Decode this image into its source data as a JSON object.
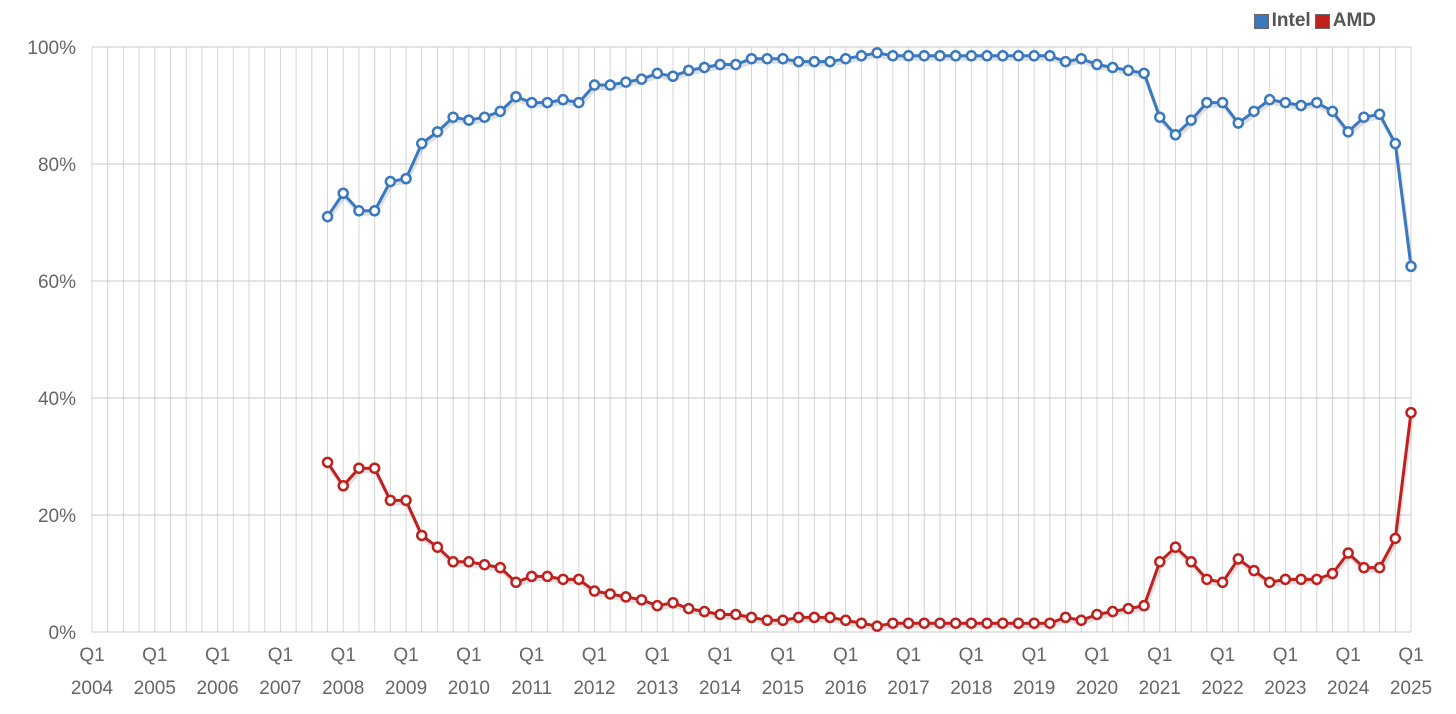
{
  "chart_data": {
    "type": "line",
    "title": "",
    "xlabel": "",
    "ylabel": "",
    "ylim": [
      0,
      100
    ],
    "y_ticks": [
      "0%",
      "20%",
      "40%",
      "60%",
      "80%",
      "100%"
    ],
    "y_tick_values": [
      0,
      20,
      40,
      60,
      80,
      100
    ],
    "x_tick_labels": [
      {
        "quarter": "Q1",
        "year": "2004"
      },
      {
        "quarter": "Q1",
        "year": "2005"
      },
      {
        "quarter": "Q1",
        "year": "2006"
      },
      {
        "quarter": "Q1",
        "year": "2007"
      },
      {
        "quarter": "Q1",
        "year": "2008"
      },
      {
        "quarter": "Q1",
        "year": "2009"
      },
      {
        "quarter": "Q1",
        "year": "2010"
      },
      {
        "quarter": "Q1",
        "year": "2011"
      },
      {
        "quarter": "Q1",
        "year": "2012"
      },
      {
        "quarter": "Q1",
        "year": "2013"
      },
      {
        "quarter": "Q1",
        "year": "2014"
      },
      {
        "quarter": "Q1",
        "year": "2015"
      },
      {
        "quarter": "Q1",
        "year": "2016"
      },
      {
        "quarter": "Q1",
        "year": "2017"
      },
      {
        "quarter": "Q1",
        "year": "2018"
      },
      {
        "quarter": "Q1",
        "year": "2019"
      },
      {
        "quarter": "Q1",
        "year": "2020"
      },
      {
        "quarter": "Q1",
        "year": "2021"
      },
      {
        "quarter": "Q1",
        "year": "2022"
      },
      {
        "quarter": "Q1",
        "year": "2023"
      },
      {
        "quarter": "Q1",
        "year": "2024"
      },
      {
        "quarter": "Q1",
        "year": "2025"
      }
    ],
    "x_start": "2004 Q1",
    "x_end": "2025 Q1",
    "grid": true,
    "legend_position": "top-right",
    "x_quarters": [
      "2007 Q4",
      "2008 Q1",
      "2008 Q2",
      "2008 Q3",
      "2008 Q4",
      "2009 Q1",
      "2009 Q2",
      "2009 Q3",
      "2009 Q4",
      "2010 Q1",
      "2010 Q2",
      "2010 Q3",
      "2010 Q4",
      "2011 Q1",
      "2011 Q2",
      "2011 Q3",
      "2011 Q4",
      "2012 Q1",
      "2012 Q2",
      "2012 Q3",
      "2012 Q4",
      "2013 Q1",
      "2013 Q2",
      "2013 Q3",
      "2013 Q4",
      "2014 Q1",
      "2014 Q2",
      "2014 Q3",
      "2014 Q4",
      "2015 Q1",
      "2015 Q2",
      "2015 Q3",
      "2015 Q4",
      "2016 Q1",
      "2016 Q2",
      "2016 Q3",
      "2016 Q4",
      "2017 Q1",
      "2017 Q2",
      "2017 Q3",
      "2017 Q4",
      "2018 Q1",
      "2018 Q2",
      "2018 Q3",
      "2018 Q4",
      "2019 Q1",
      "2019 Q2",
      "2019 Q3",
      "2019 Q4",
      "2020 Q1",
      "2020 Q2",
      "2020 Q3",
      "2020 Q4",
      "2021 Q1",
      "2021 Q2",
      "2021 Q3",
      "2021 Q4",
      "2022 Q1",
      "2022 Q2",
      "2022 Q3",
      "2022 Q4",
      "2023 Q1",
      "2023 Q2",
      "2023 Q3",
      "2023 Q4",
      "2024 Q1",
      "2024 Q2",
      "2024 Q3",
      "2024 Q4",
      "2025 Q1"
    ],
    "series": [
      {
        "name": "Intel",
        "color": "#3a78c0",
        "values": [
          71,
          75,
          72,
          72,
          77,
          77.5,
          83.5,
          85.5,
          88,
          87.5,
          88,
          89,
          91.5,
          90.5,
          90.5,
          91,
          90.5,
          93.5,
          93.5,
          94,
          94.5,
          95.5,
          95,
          96,
          96.5,
          97,
          97,
          98,
          98,
          98,
          97.5,
          97.5,
          97.5,
          98,
          98.5,
          99,
          98.5,
          98.5,
          98.5,
          98.5,
          98.5,
          98.5,
          98.5,
          98.5,
          98.5,
          98.5,
          98.5,
          97.5,
          98,
          97,
          96.5,
          96,
          95.5,
          88,
          85,
          87.5,
          90.5,
          90.5,
          87,
          89,
          91,
          90.5,
          90,
          90.5,
          89,
          85.5,
          88,
          88.5,
          83.5,
          62.5
        ]
      },
      {
        "name": "AMD",
        "color": "#c0201e",
        "values": [
          29,
          25,
          28,
          28,
          22.5,
          22.5,
          16.5,
          14.5,
          12,
          12,
          11.5,
          11,
          8.5,
          9.5,
          9.5,
          9,
          9,
          7,
          6.5,
          6,
          5.5,
          4.5,
          5,
          4,
          3.5,
          3,
          3,
          2.5,
          2,
          2,
          2.5,
          2.5,
          2.5,
          2,
          1.5,
          1,
          1.5,
          1.5,
          1.5,
          1.5,
          1.5,
          1.5,
          1.5,
          1.5,
          1.5,
          1.5,
          1.5,
          2.5,
          2,
          3,
          3.5,
          4,
          4.5,
          12,
          14.5,
          12,
          9,
          8.5,
          12.5,
          10.5,
          8.5,
          9,
          9,
          9,
          10,
          13.5,
          11,
          11,
          16,
          37.5
        ]
      }
    ]
  }
}
